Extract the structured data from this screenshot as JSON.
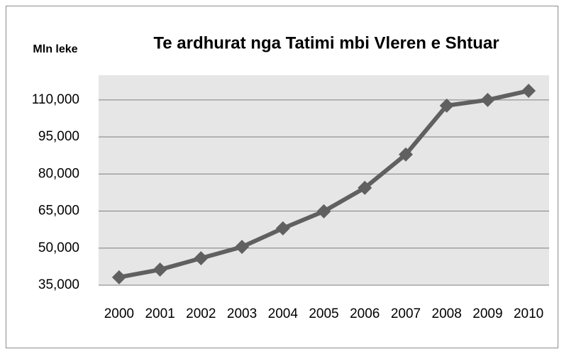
{
  "chart_data": {
    "type": "line",
    "title": "Te ardhurat nga Tatimi mbi Vleren e Shtuar",
    "y_label": "Mln leke",
    "categories": [
      "2000",
      "2001",
      "2002",
      "2003",
      "2004",
      "2005",
      "2006",
      "2007",
      "2008",
      "2009",
      "2010"
    ],
    "series": [
      {
        "name": "Te ardhurat",
        "color": "#606060",
        "values": [
          38200,
          41300,
          45900,
          50500,
          58000,
          64900,
          74400,
          87900,
          107700,
          110000,
          113700
        ]
      }
    ],
    "ylim": [
      35000,
      120000
    ],
    "yticks": [
      {
        "value": 35000,
        "label": "35,000"
      },
      {
        "value": 50000,
        "label": "50,000"
      },
      {
        "value": 65000,
        "label": "65,000"
      },
      {
        "value": 80000,
        "label": "80,000"
      },
      {
        "value": 95000,
        "label": "95,000"
      },
      {
        "value": 110000,
        "label": "110,000"
      }
    ],
    "grid": true
  }
}
